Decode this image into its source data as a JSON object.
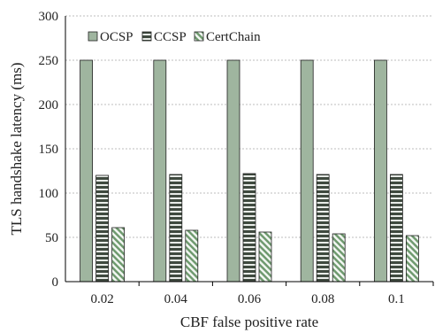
{
  "chart_data": {
    "type": "bar",
    "title": "",
    "xlabel": "CBF false positive rate",
    "ylabel": "TLS handshake latency (ms)",
    "categories": [
      "0.02",
      "0.04",
      "0.06",
      "0.08",
      "0.1"
    ],
    "ylim": [
      0,
      300
    ],
    "yticks": [
      "0",
      "50",
      "100",
      "150",
      "200",
      "250",
      "300"
    ],
    "grid": "horizontal dashed",
    "legend_position": "top-left",
    "series": [
      {
        "name": "OCSP",
        "values": [
          250,
          250,
          250,
          250,
          250
        ],
        "color": "#9fb59f",
        "pattern": "solid"
      },
      {
        "name": "CCSP",
        "values": [
          120,
          121,
          122,
          121,
          121
        ],
        "color": "#3f4a3f",
        "pattern": "horizontal-stripes"
      },
      {
        "name": "CertChain",
        "values": [
          61,
          58,
          56,
          54,
          52
        ],
        "color": "#8fb08f",
        "pattern": "diagonal-hatch"
      }
    ]
  }
}
